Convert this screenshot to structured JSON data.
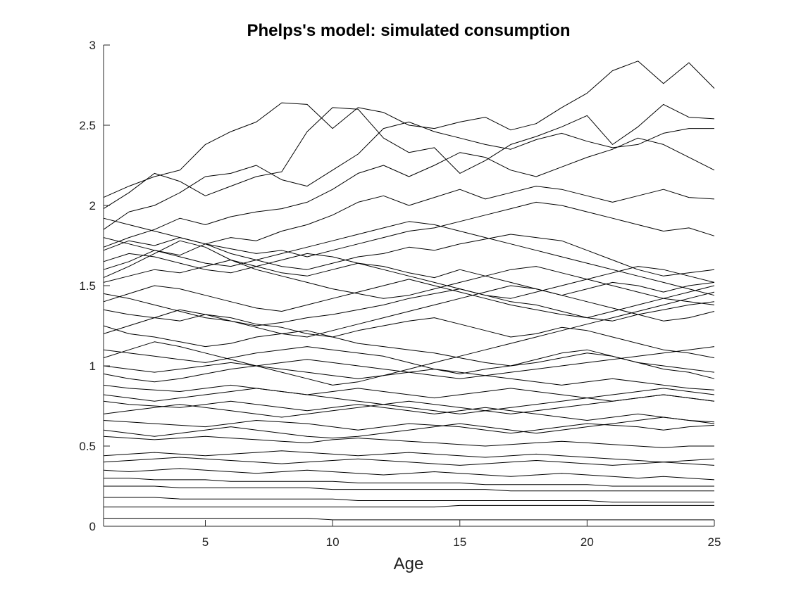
{
  "chart_data": {
    "type": "line",
    "title": "Phelps's model: simulated consumption",
    "xlabel": "Age",
    "ylabel": "",
    "xlim": [
      1,
      25
    ],
    "ylim": [
      0,
      3
    ],
    "x_ticks": [
      "5",
      "10",
      "15",
      "20",
      "25"
    ],
    "y_ticks": [
      "0",
      "0.5",
      "1",
      "1.5",
      "2",
      "2.5",
      "3"
    ],
    "x": [
      1,
      2,
      3,
      4,
      5,
      6,
      7,
      8,
      9,
      10,
      11,
      12,
      13,
      14,
      15,
      16,
      17,
      18,
      19,
      20,
      21,
      22,
      23,
      24,
      25
    ],
    "line_color": "#000000",
    "grid": false,
    "series": [
      {
        "values": [
          2.05,
          2.12,
          2.18,
          2.22,
          2.38,
          2.46,
          2.52,
          2.64,
          2.63,
          2.48,
          2.61,
          2.58,
          2.5,
          2.48,
          2.52,
          2.55,
          2.47,
          2.51,
          2.61,
          2.7,
          2.84,
          2.9,
          2.76,
          2.89,
          2.73
        ]
      },
      {
        "values": [
          1.98,
          2.08,
          2.2,
          2.15,
          2.06,
          2.12,
          2.18,
          2.21,
          2.46,
          2.61,
          2.6,
          2.42,
          2.33,
          2.36,
          2.2,
          2.28,
          2.38,
          2.43,
          2.49,
          2.56,
          2.38,
          2.49,
          2.63,
          2.55,
          2.54
        ]
      },
      {
        "values": [
          1.85,
          1.96,
          2.0,
          2.08,
          2.18,
          2.2,
          2.25,
          2.16,
          2.12,
          2.22,
          2.32,
          2.48,
          2.52,
          2.46,
          2.42,
          2.38,
          2.35,
          2.41,
          2.45,
          2.4,
          2.36,
          2.38,
          2.45,
          2.48,
          2.48
        ]
      },
      {
        "values": [
          1.74,
          1.8,
          1.85,
          1.92,
          1.88,
          1.93,
          1.96,
          1.98,
          2.02,
          2.1,
          2.2,
          2.25,
          2.18,
          2.25,
          2.33,
          2.3,
          2.22,
          2.18,
          2.24,
          2.3,
          2.35,
          2.42,
          2.38,
          2.3,
          2.22
        ]
      },
      {
        "values": [
          1.6,
          1.65,
          1.72,
          1.69,
          1.76,
          1.8,
          1.78,
          1.84,
          1.88,
          1.94,
          2.02,
          2.06,
          2.0,
          2.05,
          2.1,
          2.04,
          2.08,
          2.12,
          2.1,
          2.06,
          2.02,
          2.06,
          2.1,
          2.05,
          2.04
        ]
      },
      {
        "values": [
          1.92,
          1.88,
          1.84,
          1.8,
          1.76,
          1.73,
          1.7,
          1.72,
          1.68,
          1.72,
          1.76,
          1.8,
          1.84,
          1.86,
          1.9,
          1.94,
          1.98,
          2.02,
          2.0,
          1.96,
          1.92,
          1.88,
          1.84,
          1.86,
          1.81
        ]
      },
      {
        "values": [
          1.72,
          1.78,
          1.75,
          1.8,
          1.76,
          1.7,
          1.66,
          1.62,
          1.6,
          1.64,
          1.68,
          1.7,
          1.74,
          1.72,
          1.76,
          1.79,
          1.82,
          1.8,
          1.78,
          1.72,
          1.66,
          1.6,
          1.56,
          1.58,
          1.6
        ]
      },
      {
        "values": [
          1.52,
          1.56,
          1.6,
          1.58,
          1.62,
          1.66,
          1.62,
          1.58,
          1.56,
          1.6,
          1.64,
          1.62,
          1.58,
          1.55,
          1.6,
          1.56,
          1.52,
          1.48,
          1.44,
          1.48,
          1.52,
          1.5,
          1.46,
          1.5,
          1.52
        ]
      },
      {
        "values": [
          1.45,
          1.42,
          1.38,
          1.34,
          1.3,
          1.28,
          1.25,
          1.27,
          1.3,
          1.32,
          1.35,
          1.38,
          1.42,
          1.45,
          1.48,
          1.44,
          1.4,
          1.38,
          1.34,
          1.3,
          1.28,
          1.32,
          1.35,
          1.38,
          1.4
        ]
      },
      {
        "values": [
          1.35,
          1.32,
          1.3,
          1.28,
          1.32,
          1.3,
          1.26,
          1.24,
          1.2,
          1.18,
          1.22,
          1.25,
          1.28,
          1.3,
          1.26,
          1.22,
          1.18,
          1.2,
          1.24,
          1.22,
          1.18,
          1.14,
          1.1,
          1.08,
          1.05
        ]
      },
      {
        "values": [
          1.25,
          1.2,
          1.18,
          1.15,
          1.12,
          1.14,
          1.18,
          1.2,
          1.22,
          1.18,
          1.14,
          1.12,
          1.1,
          1.08,
          1.05,
          1.02,
          1.0,
          1.04,
          1.08,
          1.1,
          1.06,
          1.02,
          0.98,
          0.96,
          0.92
        ]
      },
      {
        "values": [
          1.1,
          1.08,
          1.06,
          1.04,
          1.02,
          1.05,
          1.08,
          1.1,
          1.12,
          1.1,
          1.08,
          1.06,
          1.02,
          0.98,
          0.95,
          0.98,
          1.0,
          1.02,
          1.05,
          1.08,
          1.06,
          1.02,
          1.0,
          0.98,
          0.96
        ]
      },
      {
        "values": [
          1.0,
          0.98,
          0.96,
          0.98,
          1.0,
          1.02,
          1.0,
          0.98,
          0.96,
          0.94,
          0.92,
          0.94,
          0.96,
          0.98,
          0.96,
          0.94,
          0.92,
          0.9,
          0.88,
          0.9,
          0.92,
          0.9,
          0.88,
          0.86,
          0.85
        ]
      },
      {
        "values": [
          0.88,
          0.86,
          0.85,
          0.84,
          0.86,
          0.88,
          0.86,
          0.84,
          0.82,
          0.84,
          0.86,
          0.84,
          0.82,
          0.8,
          0.82,
          0.84,
          0.86,
          0.84,
          0.82,
          0.8,
          0.78,
          0.8,
          0.82,
          0.8,
          0.78
        ]
      },
      {
        "values": [
          0.78,
          0.76,
          0.75,
          0.74,
          0.76,
          0.78,
          0.76,
          0.74,
          0.72,
          0.74,
          0.76,
          0.74,
          0.72,
          0.7,
          0.72,
          0.74,
          0.72,
          0.7,
          0.68,
          0.66,
          0.68,
          0.7,
          0.68,
          0.66,
          0.65
        ]
      },
      {
        "values": [
          0.66,
          0.65,
          0.64,
          0.63,
          0.62,
          0.64,
          0.66,
          0.65,
          0.64,
          0.62,
          0.6,
          0.62,
          0.64,
          0.63,
          0.62,
          0.6,
          0.58,
          0.6,
          0.62,
          0.64,
          0.63,
          0.62,
          0.6,
          0.62,
          0.63
        ]
      },
      {
        "values": [
          0.56,
          0.55,
          0.54,
          0.55,
          0.56,
          0.55,
          0.54,
          0.53,
          0.52,
          0.54,
          0.55,
          0.54,
          0.53,
          0.52,
          0.51,
          0.5,
          0.51,
          0.52,
          0.53,
          0.52,
          0.51,
          0.5,
          0.49,
          0.5,
          0.5
        ]
      },
      {
        "values": [
          0.44,
          0.45,
          0.46,
          0.45,
          0.44,
          0.45,
          0.46,
          0.47,
          0.46,
          0.45,
          0.44,
          0.45,
          0.46,
          0.45,
          0.44,
          0.43,
          0.44,
          0.45,
          0.44,
          0.43,
          0.42,
          0.41,
          0.4,
          0.39,
          0.38
        ]
      },
      {
        "values": [
          0.35,
          0.34,
          0.35,
          0.36,
          0.35,
          0.34,
          0.33,
          0.34,
          0.35,
          0.34,
          0.33,
          0.32,
          0.33,
          0.34,
          0.33,
          0.32,
          0.31,
          0.32,
          0.33,
          0.32,
          0.31,
          0.3,
          0.31,
          0.3,
          0.29
        ]
      },
      {
        "values": [
          0.3,
          0.3,
          0.29,
          0.29,
          0.29,
          0.28,
          0.28,
          0.28,
          0.28,
          0.28,
          0.27,
          0.27,
          0.27,
          0.27,
          0.27,
          0.26,
          0.26,
          0.26,
          0.26,
          0.26,
          0.25,
          0.25,
          0.25,
          0.25,
          0.25
        ]
      },
      {
        "values": [
          0.25,
          0.25,
          0.25,
          0.24,
          0.24,
          0.24,
          0.24,
          0.24,
          0.24,
          0.23,
          0.23,
          0.23,
          0.23,
          0.23,
          0.23,
          0.23,
          0.22,
          0.22,
          0.22,
          0.22,
          0.22,
          0.22,
          0.22,
          0.22,
          0.22
        ]
      },
      {
        "values": [
          0.18,
          0.18,
          0.18,
          0.17,
          0.17,
          0.17,
          0.17,
          0.17,
          0.17,
          0.17,
          0.16,
          0.16,
          0.16,
          0.16,
          0.16,
          0.16,
          0.16,
          0.16,
          0.16,
          0.16,
          0.15,
          0.15,
          0.15,
          0.15,
          0.15
        ]
      },
      {
        "values": [
          0.12,
          0.12,
          0.12,
          0.12,
          0.12,
          0.12,
          0.12,
          0.12,
          0.12,
          0.12,
          0.12,
          0.12,
          0.12,
          0.12,
          0.13,
          0.13,
          0.13,
          0.13,
          0.13,
          0.13,
          0.13,
          0.13,
          0.13,
          0.13,
          0.13
        ]
      },
      {
        "values": [
          0.05,
          0.05,
          0.05,
          0.05,
          0.05,
          0.05,
          0.05,
          0.05,
          0.05,
          0.04,
          0.04,
          0.04,
          0.04,
          0.04,
          0.04,
          0.04,
          0.04,
          0.04,
          0.04,
          0.04,
          0.04,
          0.04,
          0.04,
          0.04,
          0.04
        ]
      },
      {
        "values": [
          1.55,
          1.62,
          1.7,
          1.78,
          1.74,
          1.66,
          1.6,
          1.56,
          1.52,
          1.48,
          1.45,
          1.42,
          1.44,
          1.48,
          1.52,
          1.56,
          1.6,
          1.62,
          1.58,
          1.54,
          1.5,
          1.46,
          1.42,
          1.4,
          1.38
        ]
      },
      {
        "values": [
          1.4,
          1.45,
          1.5,
          1.48,
          1.44,
          1.4,
          1.36,
          1.34,
          1.38,
          1.42,
          1.46,
          1.5,
          1.54,
          1.5,
          1.46,
          1.42,
          1.38,
          1.35,
          1.32,
          1.3,
          1.34,
          1.38,
          1.42,
          1.46,
          1.5
        ]
      },
      {
        "values": [
          1.65,
          1.7,
          1.68,
          1.64,
          1.6,
          1.58,
          1.62,
          1.66,
          1.7,
          1.68,
          1.64,
          1.6,
          1.56,
          1.52,
          1.48,
          1.44,
          1.42,
          1.46,
          1.5,
          1.54,
          1.58,
          1.62,
          1.6,
          1.56,
          1.52
        ]
      },
      {
        "values": [
          0.95,
          0.92,
          0.9,
          0.92,
          0.95,
          0.98,
          1.0,
          1.02,
          1.04,
          1.02,
          1.0,
          0.98,
          0.96,
          0.94,
          0.92,
          0.94,
          0.96,
          0.98,
          1.0,
          1.02,
          1.04,
          1.06,
          1.08,
          1.1,
          1.12
        ]
      },
      {
        "values": [
          0.7,
          0.72,
          0.74,
          0.76,
          0.74,
          0.72,
          0.7,
          0.68,
          0.7,
          0.72,
          0.74,
          0.76,
          0.78,
          0.76,
          0.74,
          0.72,
          0.7,
          0.72,
          0.74,
          0.76,
          0.78,
          0.8,
          0.82,
          0.8,
          0.78
        ]
      },
      {
        "values": [
          0.6,
          0.58,
          0.56,
          0.58,
          0.6,
          0.62,
          0.6,
          0.58,
          0.56,
          0.55,
          0.56,
          0.58,
          0.6,
          0.62,
          0.64,
          0.62,
          0.6,
          0.58,
          0.6,
          0.62,
          0.64,
          0.66,
          0.68,
          0.66,
          0.64
        ]
      },
      {
        "values": [
          0.4,
          0.41,
          0.42,
          0.43,
          0.42,
          0.41,
          0.4,
          0.39,
          0.4,
          0.41,
          0.42,
          0.41,
          0.4,
          0.39,
          0.38,
          0.39,
          0.4,
          0.41,
          0.4,
          0.39,
          0.38,
          0.39,
          0.4,
          0.41,
          0.42
        ]
      },
      {
        "values": [
          1.2,
          1.25,
          1.3,
          1.35,
          1.32,
          1.28,
          1.24,
          1.2,
          1.18,
          1.22,
          1.26,
          1.3,
          1.34,
          1.38,
          1.42,
          1.46,
          1.5,
          1.48,
          1.44,
          1.4,
          1.36,
          1.32,
          1.28,
          1.3,
          1.34
        ]
      },
      {
        "values": [
          1.8,
          1.76,
          1.72,
          1.68,
          1.64,
          1.62,
          1.66,
          1.7,
          1.74,
          1.78,
          1.82,
          1.86,
          1.9,
          1.88,
          1.84,
          1.8,
          1.76,
          1.72,
          1.68,
          1.64,
          1.6,
          1.56,
          1.52,
          1.48,
          1.44
        ]
      },
      {
        "values": [
          1.05,
          1.1,
          1.15,
          1.12,
          1.08,
          1.04,
          1.0,
          0.96,
          0.92,
          0.88,
          0.9,
          0.94,
          0.98,
          1.02,
          1.06,
          1.1,
          1.14,
          1.18,
          1.22,
          1.26,
          1.3,
          1.34,
          1.38,
          1.42,
          1.46
        ]
      },
      {
        "values": [
          0.82,
          0.8,
          0.78,
          0.8,
          0.82,
          0.84,
          0.86,
          0.84,
          0.82,
          0.8,
          0.78,
          0.76,
          0.74,
          0.72,
          0.7,
          0.72,
          0.74,
          0.76,
          0.78,
          0.8,
          0.82,
          0.84,
          0.86,
          0.84,
          0.82
        ]
      }
    ]
  }
}
